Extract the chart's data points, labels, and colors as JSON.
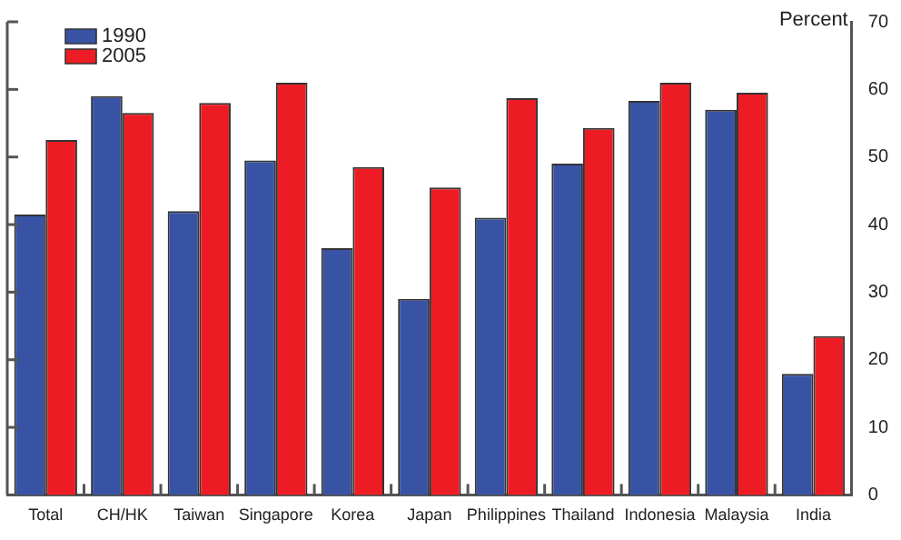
{
  "chart_data": {
    "type": "bar",
    "ylabel": "Percent",
    "categories": [
      "Total",
      "CH/HK",
      "Taiwan",
      "Singapore",
      "Korea",
      "Japan",
      "Philippines",
      "Thailand",
      "Indonesia",
      "Malaysia",
      "India"
    ],
    "series": [
      {
        "name": "1990",
        "color": "#3953a4",
        "values": [
          41.5,
          59,
          42,
          49.5,
          36.5,
          29,
          41,
          49,
          58.3,
          57,
          17.9
        ]
      },
      {
        "name": "2005",
        "color": "#ed1c24",
        "values": [
          52.5,
          56.5,
          58,
          61,
          48.5,
          45.5,
          58.7,
          54.3,
          61,
          59.5,
          23.5
        ]
      }
    ],
    "ylim": [
      0,
      70
    ],
    "yticks": [
      0,
      10,
      20,
      30,
      40,
      50,
      60,
      70
    ],
    "grid": false,
    "legend": "top left"
  }
}
